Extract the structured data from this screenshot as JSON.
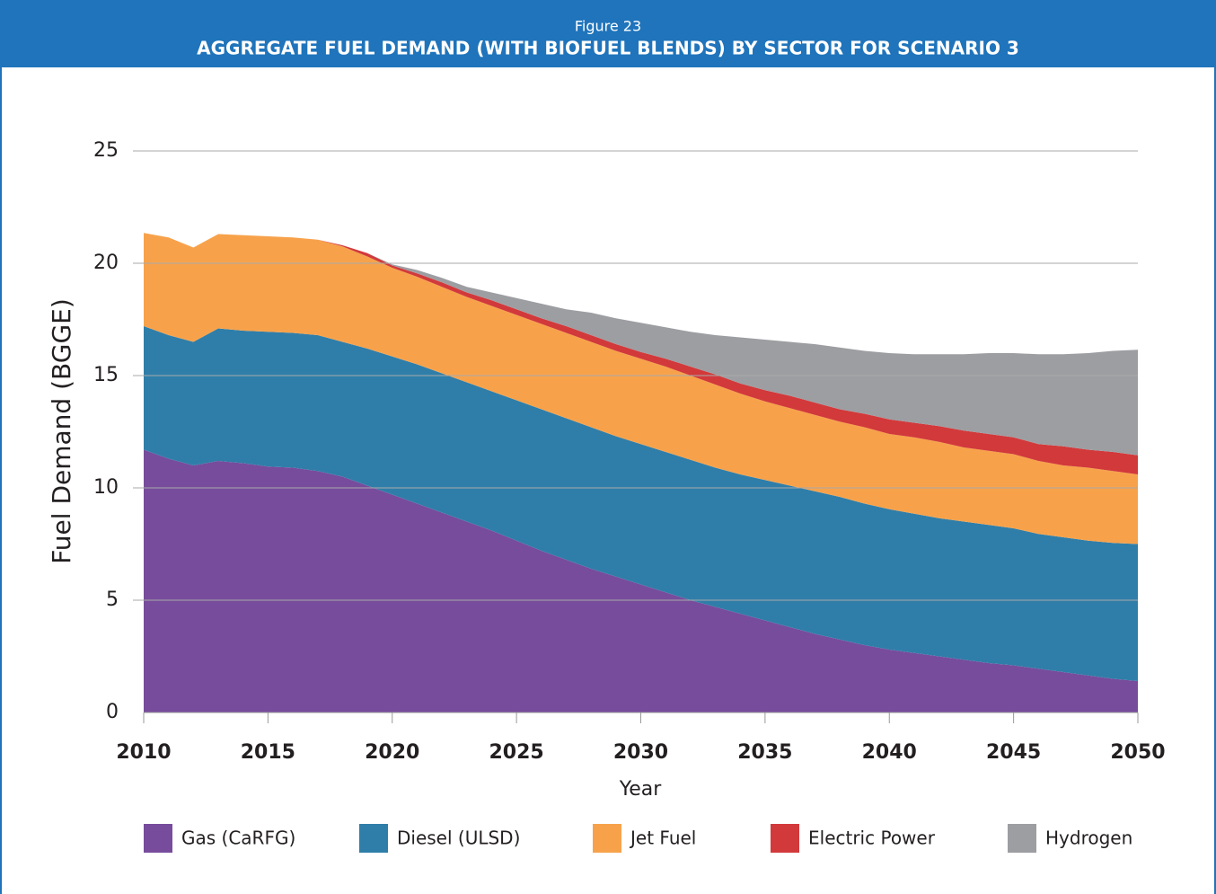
{
  "chart_data": {
    "type": "stacked_area",
    "figure_label": "Figure 23",
    "title": "AGGREGATE FUEL DEMAND (WITH BIOFUEL BLENDS) BY SECTOR FOR SCENARIO 3",
    "x_label": "Year",
    "y_label": "Fuel Demand (BGGE)",
    "x": [
      2010,
      2011,
      2012,
      2013,
      2014,
      2015,
      2016,
      2017,
      2018,
      2019,
      2020,
      2021,
      2022,
      2023,
      2024,
      2025,
      2026,
      2027,
      2028,
      2029,
      2030,
      2031,
      2032,
      2033,
      2034,
      2035,
      2036,
      2037,
      2038,
      2039,
      2040,
      2041,
      2042,
      2043,
      2044,
      2045,
      2046,
      2047,
      2048,
      2049,
      2050
    ],
    "series": [
      {
        "name": "Gas (CaRFG)",
        "color": "#774c9c",
        "values": [
          11.7,
          11.3,
          11.0,
          11.2,
          11.1,
          10.95,
          10.9,
          10.75,
          10.5,
          10.1,
          9.7,
          9.3,
          8.9,
          8.5,
          8.1,
          7.65,
          7.2,
          6.8,
          6.4,
          6.05,
          5.7,
          5.35,
          5.0,
          4.7,
          4.4,
          4.1,
          3.8,
          3.5,
          3.25,
          3.0,
          2.8,
          2.65,
          2.5,
          2.35,
          2.2,
          2.1,
          1.95,
          1.8,
          1.65,
          1.5,
          1.4
        ]
      },
      {
        "name": "Diesel (ULSD)",
        "color": "#2f7ea9",
        "values": [
          5.5,
          5.5,
          5.5,
          5.9,
          5.9,
          6.0,
          6.0,
          6.05,
          6.0,
          6.1,
          6.15,
          6.2,
          6.2,
          6.2,
          6.2,
          6.25,
          6.3,
          6.3,
          6.3,
          6.25,
          6.25,
          6.25,
          6.25,
          6.2,
          6.2,
          6.25,
          6.3,
          6.35,
          6.35,
          6.3,
          6.25,
          6.2,
          6.15,
          6.15,
          6.15,
          6.1,
          6.0,
          6.0,
          6.0,
          6.05,
          6.1
        ]
      },
      {
        "name": "Jet Fuel",
        "color": "#f7a24b",
        "values": [
          4.15,
          4.35,
          4.2,
          4.2,
          4.25,
          4.25,
          4.25,
          4.25,
          4.25,
          4.1,
          3.95,
          3.9,
          3.85,
          3.8,
          3.8,
          3.8,
          3.8,
          3.8,
          3.8,
          3.8,
          3.8,
          3.8,
          3.75,
          3.7,
          3.6,
          3.5,
          3.45,
          3.4,
          3.35,
          3.4,
          3.35,
          3.4,
          3.4,
          3.3,
          3.3,
          3.3,
          3.25,
          3.2,
          3.25,
          3.2,
          3.1
        ]
      },
      {
        "name": "Electric Power",
        "color": "#d2393b",
        "values": [
          0,
          0,
          0,
          0,
          0,
          0,
          0,
          0,
          0.05,
          0.15,
          0.1,
          0.15,
          0.2,
          0.2,
          0.25,
          0.25,
          0.25,
          0.3,
          0.3,
          0.3,
          0.3,
          0.35,
          0.4,
          0.45,
          0.45,
          0.5,
          0.55,
          0.55,
          0.55,
          0.6,
          0.65,
          0.65,
          0.7,
          0.75,
          0.75,
          0.75,
          0.75,
          0.85,
          0.8,
          0.85,
          0.85
        ]
      },
      {
        "name": "Hydrogen",
        "color": "#9d9ea2",
        "values": [
          0,
          0,
          0,
          0,
          0,
          0,
          0,
          0,
          0,
          0,
          0.05,
          0.15,
          0.2,
          0.25,
          0.35,
          0.5,
          0.65,
          0.75,
          1.0,
          1.15,
          1.3,
          1.4,
          1.55,
          1.75,
          2.05,
          2.25,
          2.4,
          2.6,
          2.75,
          2.8,
          2.95,
          3.05,
          3.2,
          3.4,
          3.6,
          3.75,
          4.0,
          4.1,
          4.3,
          4.5,
          4.7
        ]
      }
    ],
    "xlim": [
      2010,
      2050
    ],
    "xticks": [
      2010,
      2015,
      2020,
      2025,
      2030,
      2035,
      2040,
      2045,
      2050
    ],
    "ylim": [
      0,
      25
    ],
    "yticks": [
      0,
      5,
      10,
      15,
      20,
      25
    ],
    "grid": true,
    "legend": "bottom"
  }
}
